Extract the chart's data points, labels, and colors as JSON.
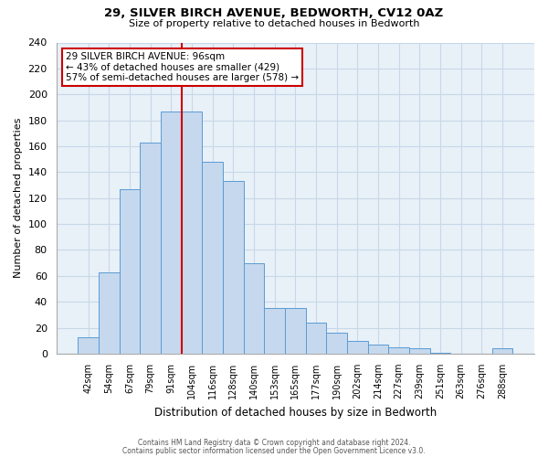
{
  "title1": "29, SILVER BIRCH AVENUE, BEDWORTH, CV12 0AZ",
  "title2": "Size of property relative to detached houses in Bedworth",
  "xlabel": "Distribution of detached houses by size in Bedworth",
  "ylabel": "Number of detached properties",
  "bar_labels": [
    "42sqm",
    "54sqm",
    "67sqm",
    "79sqm",
    "91sqm",
    "104sqm",
    "116sqm",
    "128sqm",
    "140sqm",
    "153sqm",
    "165sqm",
    "177sqm",
    "190sqm",
    "202sqm",
    "214sqm",
    "227sqm",
    "239sqm",
    "251sqm",
    "263sqm",
    "276sqm",
    "288sqm"
  ],
  "bar_heights": [
    13,
    63,
    127,
    163,
    187,
    187,
    148,
    133,
    70,
    35,
    35,
    24,
    16,
    10,
    7,
    5,
    4,
    1,
    0,
    0,
    4
  ],
  "bar_color": "#c5d8ed",
  "bar_edge_color": "#5b9bd5",
  "property_line_color": "#cc0000",
  "property_line_x": 4.5,
  "annotation_title": "29 SILVER BIRCH AVENUE: 96sqm",
  "annotation_line1": "← 43% of detached houses are smaller (429)",
  "annotation_line2": "57% of semi-detached houses are larger (578) →",
  "annotation_box_color": "#ffffff",
  "annotation_box_edge": "#cc0000",
  "ylim": [
    0,
    240
  ],
  "yticks": [
    0,
    20,
    40,
    60,
    80,
    100,
    120,
    140,
    160,
    180,
    200,
    220,
    240
  ],
  "footer1": "Contains HM Land Registry data © Crown copyright and database right 2024.",
  "footer2": "Contains public sector information licensed under the Open Government Licence v3.0.",
  "background_color": "#ffffff",
  "grid_color": "#c8d8e8",
  "plot_bg_color": "#e8f0f8"
}
